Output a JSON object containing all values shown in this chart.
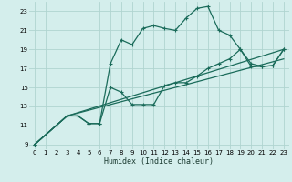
{
  "xlabel": "Humidex (Indice chaleur)",
  "bg_color": "#d4eeec",
  "grid_color": "#b0d4d0",
  "line_color": "#1a6b5a",
  "xlim": [
    -0.5,
    23.5
  ],
  "ylim": [
    8.5,
    24.0
  ],
  "xticks": [
    0,
    1,
    2,
    3,
    4,
    5,
    6,
    7,
    8,
    9,
    10,
    11,
    12,
    13,
    14,
    15,
    16,
    17,
    18,
    19,
    20,
    21,
    22,
    23
  ],
  "yticks": [
    9,
    11,
    13,
    15,
    17,
    19,
    21,
    23
  ],
  "curve1_x": [
    0,
    2,
    3,
    4,
    5,
    6,
    7,
    8,
    9,
    10,
    11,
    12,
    13,
    14,
    15,
    16,
    17,
    18,
    19,
    20,
    21,
    22,
    23
  ],
  "curve1_y": [
    9,
    11,
    12,
    12,
    11.2,
    11.2,
    17.5,
    20,
    19.5,
    21.2,
    21.5,
    21.2,
    21.0,
    22.3,
    23.3,
    23.5,
    21.0,
    20.5,
    19.0,
    17.2,
    17.2,
    17.3,
    19.0
  ],
  "curve2_x": [
    0,
    3,
    4,
    5,
    6,
    7,
    8,
    9,
    10,
    11,
    12,
    13,
    14,
    15,
    16,
    17,
    18,
    19,
    20,
    21,
    22,
    23
  ],
  "curve2_y": [
    9,
    12,
    12,
    11.2,
    11.2,
    15.0,
    14.5,
    13.2,
    13.2,
    13.2,
    15.2,
    15.5,
    15.5,
    16.2,
    17.0,
    17.5,
    18.0,
    19.0,
    17.5,
    17.2,
    17.3,
    19.0
  ],
  "curve3_x": [
    0,
    3,
    23
  ],
  "curve3_y": [
    9,
    12,
    19.0
  ],
  "curve4_x": [
    0,
    3,
    23
  ],
  "curve4_y": [
    9,
    12,
    18.0
  ]
}
